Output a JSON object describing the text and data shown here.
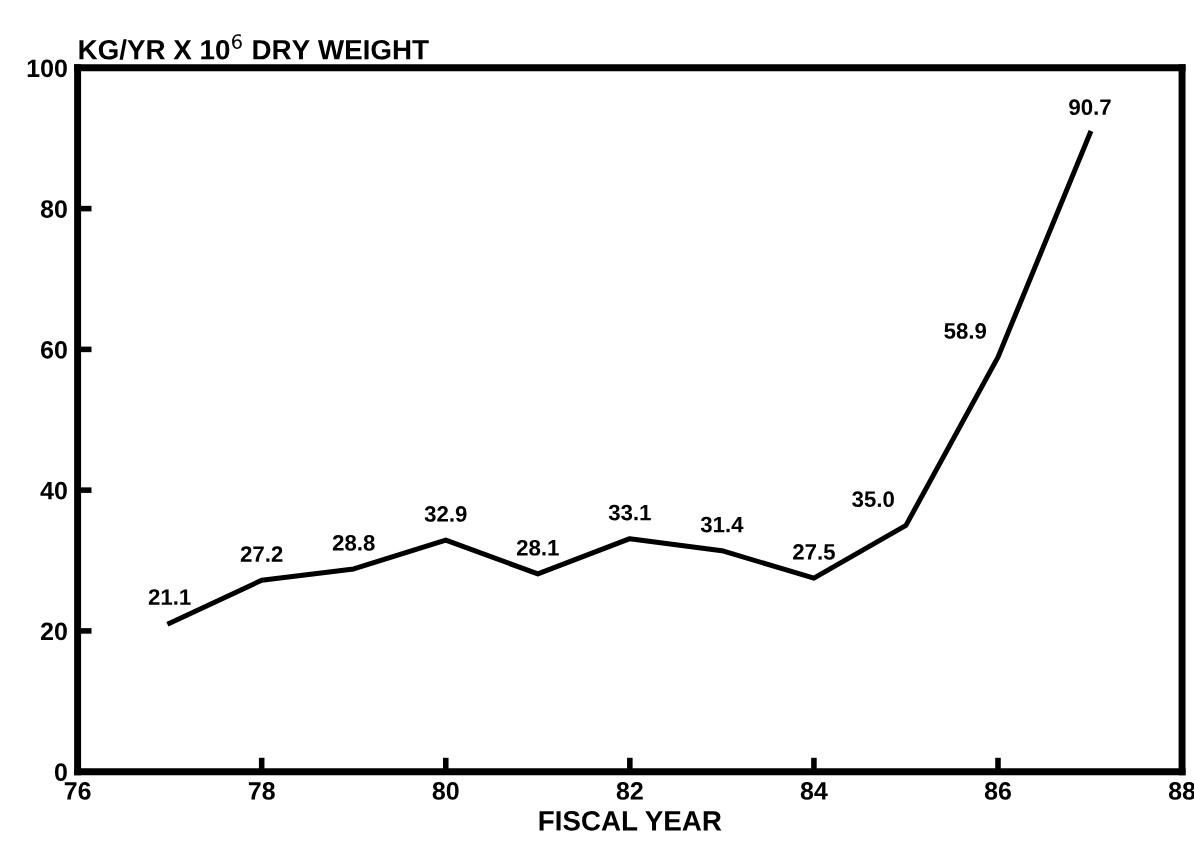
{
  "chart_data": {
    "type": "line",
    "title": "KG/YR X 10$^{6}$ DRY WEIGHT",
    "xlabel": "FISCAL YEAR",
    "x": [
      77,
      78,
      79,
      80,
      81,
      82,
      83,
      84,
      85,
      86,
      87
    ],
    "values": [
      21.1,
      27.2,
      28.8,
      32.9,
      28.1,
      33.1,
      31.4,
      27.5,
      35.0,
      58.9,
      90.7
    ],
    "color": "#000000",
    "value_labels": [
      "21.1",
      "27.2",
      "28.8",
      "32.9",
      "28.1",
      "33.1",
      "31.4",
      "27.5",
      "35.0",
      "58.9",
      "90.7"
    ],
    "xlim": [
      76,
      88
    ],
    "xticks": [
      76,
      78,
      80,
      82,
      84,
      86,
      88
    ],
    "ylim": [
      0,
      100
    ],
    "yticks": [
      0,
      20,
      40,
      60,
      80,
      100
    ],
    "grid": false,
    "legend": false,
    "marker": "none",
    "line_style": "solid"
  }
}
